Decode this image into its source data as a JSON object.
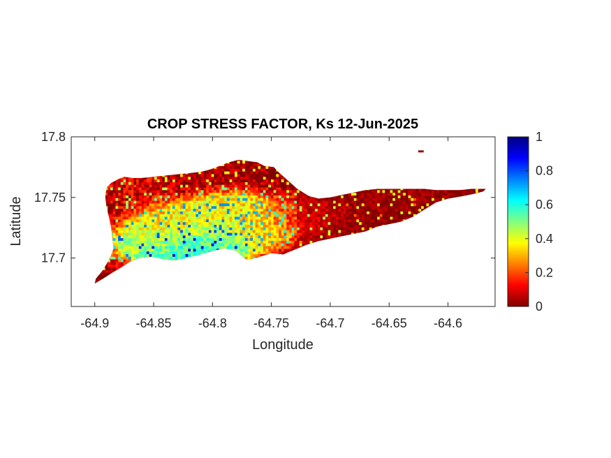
{
  "chart_data": {
    "type": "heatmap",
    "title": "CROP STRESS FACTOR, Ks  12-Jun-2025",
    "xlabel": "Longitude",
    "ylabel": "Latitude",
    "xlim": [
      -64.92,
      -64.56
    ],
    "ylim": [
      17.66,
      17.8
    ],
    "xticks": [
      -64.9,
      -64.85,
      -64.8,
      -64.75,
      -64.7,
      -64.65,
      -64.6
    ],
    "xtick_labels": [
      "-64.9",
      "-64.85",
      "-64.8",
      "-64.75",
      "-64.7",
      "-64.65",
      "-64.6"
    ],
    "yticks": [
      17.7,
      17.75,
      17.8
    ],
    "ytick_labels": [
      "17.7",
      "17.75",
      "17.8"
    ],
    "colorbar": {
      "colormap": "jet",
      "range": [
        0,
        1
      ],
      "ticks": [
        0,
        0.2,
        0.4,
        0.6,
        0.8,
        1
      ],
      "tick_labels": [
        "0",
        "0.2",
        "0.4",
        "0.6",
        "0.8",
        "1"
      ],
      "colors": [
        "#7f0000",
        "#ff0000",
        "#ff8000",
        "#ffff00",
        "#80ff80",
        "#00ffff",
        "#0080ff",
        "#0000ff",
        "#00007f"
      ]
    },
    "island_outline": [
      [
        -64.9,
        17.679
      ],
      [
        -64.893,
        17.683
      ],
      [
        -64.885,
        17.688
      ],
      [
        -64.878,
        17.692
      ],
      [
        -64.87,
        17.697
      ],
      [
        -64.862,
        17.7
      ],
      [
        -64.852,
        17.701
      ],
      [
        -64.842,
        17.699
      ],
      [
        -64.833,
        17.698
      ],
      [
        -64.822,
        17.7
      ],
      [
        -64.81,
        17.703
      ],
      [
        -64.8,
        17.706
      ],
      [
        -64.79,
        17.708
      ],
      [
        -64.78,
        17.706
      ],
      [
        -64.772,
        17.699
      ],
      [
        -64.767,
        17.699
      ],
      [
        -64.76,
        17.701
      ],
      [
        -64.75,
        17.704
      ],
      [
        -64.74,
        17.703
      ],
      [
        -64.73,
        17.707
      ],
      [
        -64.72,
        17.711
      ],
      [
        -64.71,
        17.714
      ],
      [
        -64.7,
        17.716
      ],
      [
        -64.69,
        17.718
      ],
      [
        -64.68,
        17.72
      ],
      [
        -64.67,
        17.722
      ],
      [
        -64.66,
        17.726
      ],
      [
        -64.65,
        17.728
      ],
      [
        -64.64,
        17.73
      ],
      [
        -64.63,
        17.734
      ],
      [
        -64.62,
        17.74
      ],
      [
        -64.61,
        17.746
      ],
      [
        -64.6,
        17.749
      ],
      [
        -64.588,
        17.751
      ],
      [
        -64.578,
        17.753
      ],
      [
        -64.57,
        17.755
      ],
      [
        -64.568,
        17.757
      ],
      [
        -64.58,
        17.757
      ],
      [
        -64.59,
        17.756
      ],
      [
        -64.6,
        17.756
      ],
      [
        -64.61,
        17.756
      ],
      [
        -64.62,
        17.757
      ],
      [
        -64.63,
        17.757
      ],
      [
        -64.64,
        17.757
      ],
      [
        -64.65,
        17.757
      ],
      [
        -64.66,
        17.757
      ],
      [
        -64.67,
        17.756
      ],
      [
        -64.68,
        17.754
      ],
      [
        -64.69,
        17.752
      ],
      [
        -64.7,
        17.75
      ],
      [
        -64.71,
        17.749
      ],
      [
        -64.718,
        17.751
      ],
      [
        -64.728,
        17.757
      ],
      [
        -64.736,
        17.764
      ],
      [
        -64.743,
        17.77
      ],
      [
        -64.748,
        17.775
      ],
      [
        -64.756,
        17.776
      ],
      [
        -64.762,
        17.779
      ],
      [
        -64.77,
        17.78
      ],
      [
        -64.778,
        17.781
      ],
      [
        -64.786,
        17.779
      ],
      [
        -64.794,
        17.776
      ],
      [
        -64.802,
        17.773
      ],
      [
        -64.81,
        17.771
      ],
      [
        -64.82,
        17.77
      ],
      [
        -64.83,
        17.769
      ],
      [
        -64.84,
        17.768
      ],
      [
        -64.85,
        17.767
      ],
      [
        -64.86,
        17.766
      ],
      [
        -64.868,
        17.766
      ],
      [
        -64.875,
        17.767
      ],
      [
        -64.88,
        17.765
      ],
      [
        -64.886,
        17.762
      ],
      [
        -64.89,
        17.758
      ],
      [
        -64.891,
        17.75
      ],
      [
        -64.89,
        17.742
      ],
      [
        -64.888,
        17.734
      ],
      [
        -64.886,
        17.725
      ],
      [
        -64.885,
        17.716
      ],
      [
        -64.884,
        17.708
      ],
      [
        -64.887,
        17.7
      ],
      [
        -64.893,
        17.69
      ],
      [
        -64.899,
        17.683
      ]
    ],
    "islet": [
      -64.623,
      17.788
    ],
    "stress_hotspots": [
      {
        "lon": -64.825,
        "lat": 17.708,
        "value": 0.62
      },
      {
        "lon": -64.8,
        "lat": 17.707,
        "value": 0.55
      },
      {
        "lon": -64.855,
        "lat": 17.711,
        "value": 0.45
      },
      {
        "lon": -64.81,
        "lat": 17.73,
        "value": 0.4
      },
      {
        "lon": -64.78,
        "lat": 17.738,
        "value": 0.35
      },
      {
        "lon": -64.84,
        "lat": 17.725,
        "value": 0.3
      },
      {
        "lon": -64.76,
        "lat": 17.722,
        "value": 0.3
      },
      {
        "lon": -64.72,
        "lat": 17.735,
        "value": 0.12
      },
      {
        "lon": -64.65,
        "lat": 17.743,
        "value": 0.03
      },
      {
        "lon": -64.6,
        "lat": 17.752,
        "value": 0.02
      },
      {
        "lon": -64.87,
        "lat": 17.755,
        "value": 0.08
      }
    ]
  }
}
